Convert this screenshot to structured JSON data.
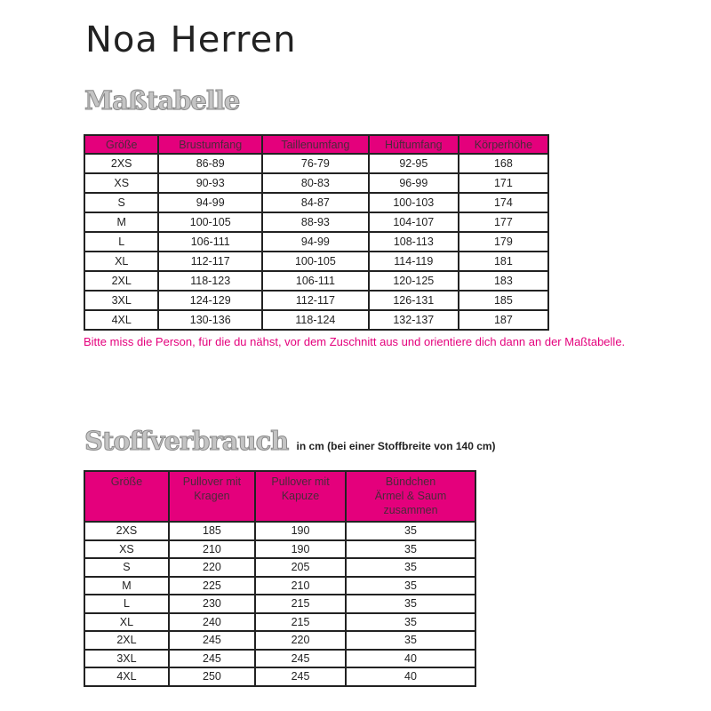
{
  "title": "Noa Herren",
  "size_chart": {
    "heading": "Maßtabelle",
    "columns": [
      "Größe",
      "Brustumfang",
      "Taillenumfang",
      "Hüftumfang",
      "Körperhöhe"
    ],
    "rows": [
      [
        "2XS",
        "86-89",
        "76-79",
        "92-95",
        "168"
      ],
      [
        "XS",
        "90-93",
        "80-83",
        "96-99",
        "171"
      ],
      [
        "S",
        "94-99",
        "84-87",
        "100-103",
        "174"
      ],
      [
        "M",
        "100-105",
        "88-93",
        "104-107",
        "177"
      ],
      [
        "L",
        "106-111",
        "94-99",
        "108-113",
        "179"
      ],
      [
        "XL",
        "112-117",
        "100-105",
        "114-119",
        "181"
      ],
      [
        "2XL",
        "118-123",
        "106-111",
        "120-125",
        "183"
      ],
      [
        "3XL",
        "124-129",
        "112-117",
        "126-131",
        "185"
      ],
      [
        "4XL",
        "130-136",
        "118-124",
        "132-137",
        "187"
      ]
    ],
    "note": "Bitte miss die Person, für die du nähst, vor dem Zuschnitt aus und orientiere dich dann an der Maßtabelle."
  },
  "fabric": {
    "heading": "Stoffverbrauch",
    "subheading": "in cm (bei einer Stoffbreite von 140 cm)",
    "columns": [
      "Größe",
      "Pullover mit\nKragen",
      "Pullover mit\nKapuze",
      "Bündchen\nÄrmel & Saum\nzusammen"
    ],
    "rows": [
      [
        "2XS",
        "185",
        "190",
        "35"
      ],
      [
        "XS",
        "210",
        "190",
        "35"
      ],
      [
        "S",
        "220",
        "205",
        "35"
      ],
      [
        "M",
        "225",
        "210",
        "35"
      ],
      [
        "L",
        "230",
        "215",
        "35"
      ],
      [
        "XL",
        "240",
        "215",
        "35"
      ],
      [
        "2XL",
        "245",
        "220",
        "35"
      ],
      [
        "3XL",
        "245",
        "245",
        "40"
      ],
      [
        "4XL",
        "250",
        "245",
        "40"
      ]
    ]
  },
  "colors": {
    "accent": "#e4007c"
  }
}
